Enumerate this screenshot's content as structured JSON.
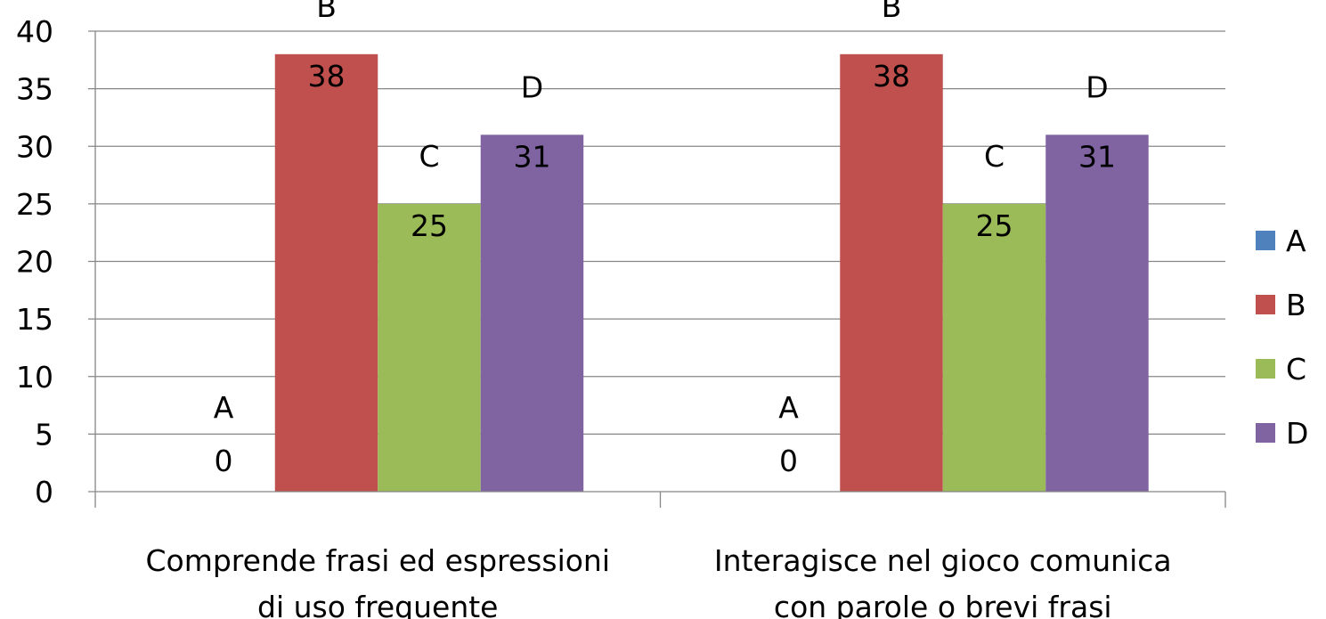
{
  "chart_data": {
    "type": "bar",
    "categories": [
      [
        "Comprende frasi ed espressioni",
        "di uso frequente"
      ],
      [
        "Interagisce nel gioco comunica",
        "con parole o brevi frasi"
      ]
    ],
    "series": [
      {
        "name": "A",
        "color": "#4F81BD",
        "values": [
          0,
          0
        ]
      },
      {
        "name": "B",
        "color": "#C0504D",
        "values": [
          38,
          38
        ]
      },
      {
        "name": "C",
        "color": "#9BBB59",
        "values": [
          25,
          25
        ]
      },
      {
        "name": "D",
        "color": "#8064A2",
        "values": [
          31,
          31
        ]
      }
    ],
    "ylim": [
      0,
      40
    ],
    "yticks": [
      0,
      5,
      10,
      15,
      20,
      25,
      30,
      35,
      40
    ],
    "grid": true,
    "legend": "right",
    "data_labels": "series name and value"
  }
}
